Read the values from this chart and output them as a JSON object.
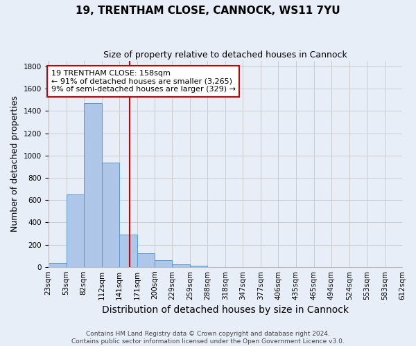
{
  "title_line1": "19, TRENTHAM CLOSE, CANNOCK, WS11 7YU",
  "title_line2": "Size of property relative to detached houses in Cannock",
  "xlabel": "Distribution of detached houses by size in Cannock",
  "ylabel": "Number of detached properties",
  "bin_edges": [
    23,
    53,
    82,
    112,
    141,
    171,
    200,
    229,
    259,
    288,
    318,
    347,
    377,
    406,
    435,
    465,
    494,
    524,
    553,
    583,
    612
  ],
  "bin_counts": [
    38,
    650,
    1474,
    936,
    290,
    125,
    62,
    22,
    10,
    0,
    0,
    0,
    0,
    0,
    0,
    0,
    0,
    0,
    0,
    0
  ],
  "bar_color": "#aec6e8",
  "bar_edge_color": "#5599cc",
  "property_size": 158,
  "annotation_text": "19 TRENTHAM CLOSE: 158sqm\n← 91% of detached houses are smaller (3,265)\n9% of semi-detached houses are larger (329) →",
  "annotation_box_color": "#ffffff",
  "annotation_box_edge_color": "#cc0000",
  "vline_color": "#cc0000",
  "ylim": [
    0,
    1850
  ],
  "yticks": [
    0,
    200,
    400,
    600,
    800,
    1000,
    1200,
    1400,
    1600,
    1800
  ],
  "footer_line1": "Contains HM Land Registry data © Crown copyright and database right 2024.",
  "footer_line2": "Contains public sector information licensed under the Open Government Licence v3.0.",
  "background_color": "#e8eef8",
  "fig_background_color": "#e8eef8",
  "grid_color": "#cccccc",
  "title_fontsize": 11,
  "subtitle_fontsize": 9,
  "axis_label_fontsize": 9,
  "tick_fontsize": 7.5,
  "annotation_fontsize": 8,
  "footer_fontsize": 6.5
}
